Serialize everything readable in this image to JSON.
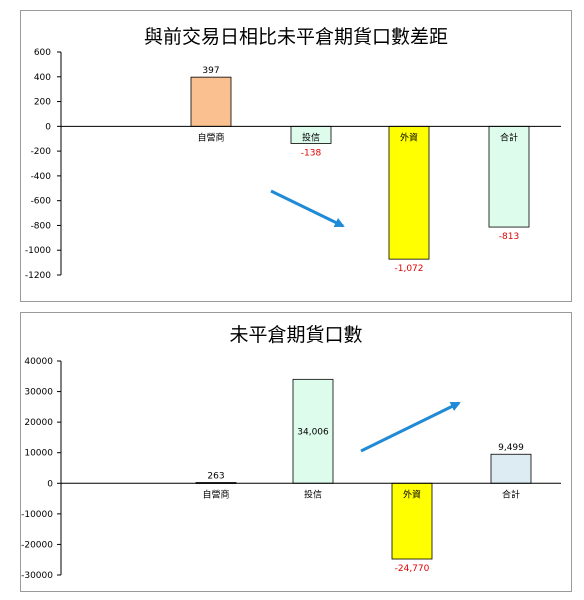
{
  "chart_data": [
    {
      "type": "bar",
      "title": "與前交易日相比未平倉期貨口數差距",
      "categories": [
        "自營商",
        "投信",
        "外資",
        "合計"
      ],
      "values": [
        397,
        -138,
        -1072,
        -813
      ],
      "value_labels": [
        "397",
        "-138",
        "-1,072",
        "-813"
      ],
      "yticks": [
        "600",
        "400",
        "200",
        "0",
        "-200",
        "-400",
        "-600",
        "-800",
        "-1000",
        "-1200"
      ],
      "ylim": [
        -1200,
        600
      ],
      "bar_colors": [
        "#fac090",
        "#ddfcec",
        "#ffff00",
        "#ddfcec"
      ],
      "label_colors": [
        "#000000",
        "#e00000",
        "#e00000",
        "#e00000"
      ],
      "arrow_color": "#1f8ad6",
      "arrow_direction": "down-right",
      "legend": "none",
      "grid": false
    },
    {
      "type": "bar",
      "title": "未平倉期貨口數",
      "categories": [
        "自營商",
        "投信",
        "外資",
        "合計"
      ],
      "values": [
        263,
        34006,
        -24770,
        9499
      ],
      "value_labels": [
        "263",
        "34,006",
        "-24,770",
        "9,499"
      ],
      "yticks": [
        "40000",
        "30000",
        "20000",
        "10000",
        "0",
        "-10000",
        "-20000",
        "-30000"
      ],
      "ylim": [
        -30000,
        40000
      ],
      "bar_colors": [
        "#f2f2f2",
        "#ddfcec",
        "#ffff00",
        "#dcecf2"
      ],
      "label_colors": [
        "#000000",
        "#000000",
        "#e00000",
        "#000000"
      ],
      "arrow_color": "#1f8ad6",
      "arrow_direction": "up-right",
      "legend": "none",
      "grid": false
    }
  ]
}
